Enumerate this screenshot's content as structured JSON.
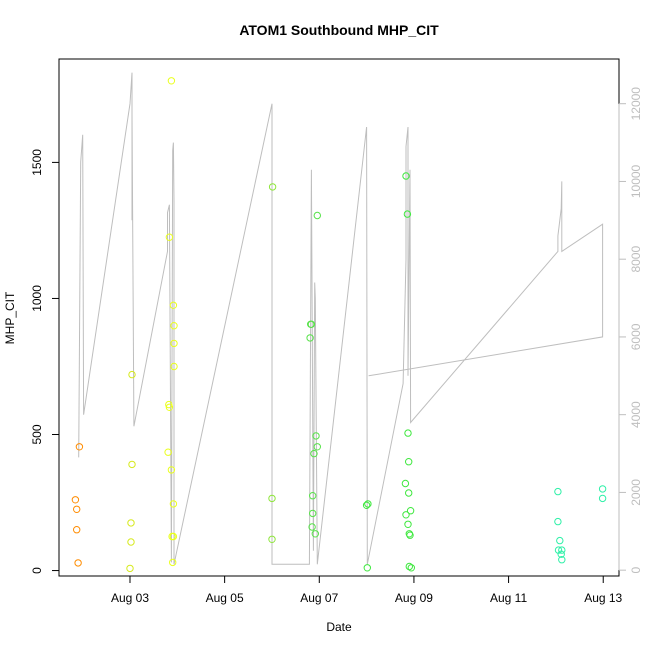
{
  "chart_data": {
    "type": "scatter",
    "title": "ATOM1 Southbound MHP_CIT",
    "xlabel": "Date",
    "ylabel": "MHP_CIT",
    "xlim": [
      "2024-08-01T12:00",
      "2024-08-13T08:00"
    ],
    "ylim": [
      -20,
      1880
    ],
    "y2lim": [
      -150,
      13150
    ],
    "x_ticks": [
      {
        "t": "2024-08-03T00:00",
        "label": "Aug 03"
      },
      {
        "t": "2024-08-05T00:00",
        "label": "Aug 05"
      },
      {
        "t": "2024-08-07T00:00",
        "label": "Aug 07"
      },
      {
        "t": "2024-08-09T00:00",
        "label": "Aug 09"
      },
      {
        "t": "2024-08-11T00:00",
        "label": "Aug 11"
      },
      {
        "t": "2024-08-13T00:00",
        "label": "Aug 13"
      }
    ],
    "y_ticks": [
      0,
      500,
      1000,
      1500
    ],
    "y2_ticks": [
      0,
      2000,
      4000,
      6000,
      8000,
      10000,
      12000
    ],
    "grid": false,
    "series": [
      {
        "color": "#ff8c00",
        "points": [
          [
            "2024-08-01T20:20",
            260
          ],
          [
            "2024-08-01T21:00",
            225
          ],
          [
            "2024-08-01T21:00",
            150
          ],
          [
            "2024-08-01T21:40",
            28
          ],
          [
            "2024-08-01T22:20",
            455
          ]
        ]
      },
      {
        "color": "#d7ea1e",
        "points": [
          [
            "2024-08-03T00:00",
            8
          ],
          [
            "2024-08-03T00:30",
            105
          ],
          [
            "2024-08-03T00:30",
            175
          ],
          [
            "2024-08-03T01:00",
            390
          ],
          [
            "2024-08-03T01:00",
            720
          ]
        ]
      },
      {
        "color": "#eaff1e",
        "points": [
          [
            "2024-08-03T19:20",
            435
          ],
          [
            "2024-08-03T19:40",
            610
          ],
          [
            "2024-08-03T20:00",
            600
          ],
          [
            "2024-08-03T20:00",
            1225
          ],
          [
            "2024-08-03T21:00",
            1800
          ],
          [
            "2024-08-03T21:00",
            370
          ],
          [
            "2024-08-03T21:20",
            125
          ],
          [
            "2024-08-03T21:40",
            30
          ],
          [
            "2024-08-03T22:00",
            125
          ],
          [
            "2024-08-03T22:00",
            245
          ],
          [
            "2024-08-03T22:00",
            975
          ],
          [
            "2024-08-03T22:20",
            900
          ],
          [
            "2024-08-03T22:20",
            835
          ],
          [
            "2024-08-03T22:20",
            750
          ]
        ]
      },
      {
        "color": "#8fe63c",
        "points": [
          [
            "2024-08-06T00:00",
            265
          ],
          [
            "2024-08-06T00:00",
            115
          ],
          [
            "2024-08-06T00:20",
            1410
          ]
        ]
      },
      {
        "color": "#58e24a",
        "points": [
          [
            "2024-08-06T19:20",
            855
          ],
          [
            "2024-08-06T19:40",
            905
          ],
          [
            "2024-08-06T20:00",
            905
          ],
          [
            "2024-08-06T20:20",
            160
          ],
          [
            "2024-08-06T20:40",
            275
          ],
          [
            "2024-08-06T20:40",
            210
          ],
          [
            "2024-08-06T21:20",
            430
          ],
          [
            "2024-08-06T22:00",
            135
          ],
          [
            "2024-08-06T22:20",
            495
          ],
          [
            "2024-08-06T23:00",
            455
          ],
          [
            "2024-08-06T23:00",
            1305
          ]
        ]
      },
      {
        "color": "#3ee83e",
        "points": [
          [
            "2024-08-08T00:00",
            240
          ],
          [
            "2024-08-08T00:20",
            10
          ],
          [
            "2024-08-08T00:40",
            245
          ],
          [
            "2024-08-08T19:40",
            320
          ],
          [
            "2024-08-08T20:00",
            205
          ],
          [
            "2024-08-08T20:00",
            1450
          ],
          [
            "2024-08-08T20:40",
            1310
          ],
          [
            "2024-08-08T21:00",
            505
          ],
          [
            "2024-08-08T21:00",
            170
          ],
          [
            "2024-08-08T21:20",
            285
          ],
          [
            "2024-08-08T21:20",
            400
          ],
          [
            "2024-08-08T21:40",
            135
          ],
          [
            "2024-08-08T21:40",
            15
          ],
          [
            "2024-08-08T22:00",
            130
          ],
          [
            "2024-08-08T22:20",
            220
          ],
          [
            "2024-08-08T22:40",
            10
          ]
        ]
      },
      {
        "color": "#2ff0a8",
        "points": [
          [
            "2024-08-12T01:00",
            290
          ],
          [
            "2024-08-12T01:00",
            180
          ],
          [
            "2024-08-12T01:20",
            75
          ],
          [
            "2024-08-12T02:00",
            110
          ],
          [
            "2024-08-12T02:40",
            60
          ],
          [
            "2024-08-12T03:00",
            75
          ],
          [
            "2024-08-12T03:00",
            40
          ],
          [
            "2024-08-12T23:40",
            300
          ],
          [
            "2024-08-12T23:40",
            265
          ]
        ]
      }
    ],
    "line_series": {
      "color": "#bebebe",
      "axis": "right",
      "points": [
        [
          "2024-08-01T22:00",
          2900
        ],
        [
          "2024-08-01T23:00",
          10500
        ],
        [
          "2024-08-02T00:00",
          11200
        ],
        [
          "2024-08-02T00:30",
          4000
        ],
        [
          "2024-08-03T00:00",
          12000
        ],
        [
          "2024-08-03T01:00",
          12800
        ],
        [
          "2024-08-03T01:00",
          9000
        ],
        [
          "2024-08-03T01:00",
          11800
        ],
        [
          "2024-08-03T02:00",
          3700
        ],
        [
          "2024-08-03T19:00",
          8200
        ],
        [
          "2024-08-03T19:00",
          9200
        ],
        [
          "2024-08-03T20:00",
          9400
        ],
        [
          "2024-08-03T21:00",
          200
        ],
        [
          "2024-08-03T21:40",
          10800
        ],
        [
          "2024-08-03T22:00",
          11000
        ],
        [
          "2024-08-03T22:20",
          9500
        ],
        [
          "2024-08-03T22:20",
          150
        ],
        [
          "2024-08-06T00:00",
          12000
        ],
        [
          "2024-08-06T00:00",
          5500
        ],
        [
          "2024-08-06T00:00",
          150
        ],
        [
          "2024-08-06T19:00",
          150
        ],
        [
          "2024-08-06T20:00",
          10300
        ],
        [
          "2024-08-06T21:00",
          500
        ],
        [
          "2024-08-06T21:40",
          7400
        ],
        [
          "2024-08-06T22:00",
          7000
        ],
        [
          "2024-08-06T23:00",
          150
        ],
        [
          "2024-08-08T00:00",
          11400
        ],
        [
          "2024-08-08T00:20",
          150
        ],
        [
          "2024-08-08T18:30",
          4800
        ],
        [
          "2024-08-08T20:00",
          8000
        ],
        [
          "2024-08-08T20:00",
          10900
        ],
        [
          "2024-08-08T21:00",
          11400
        ],
        [
          "2024-08-08T21:00",
          5000
        ],
        [
          "2024-08-08T22:00",
          10300
        ],
        [
          "2024-08-08T22:20",
          3800
        ],
        [
          "2024-08-12T01:00",
          8200
        ],
        [
          "2024-08-12T01:00",
          8600
        ],
        [
          "2024-08-12T02:00",
          9000
        ],
        [
          "2024-08-12T02:40",
          9300
        ],
        [
          "2024-08-12T03:00",
          10000
        ],
        [
          "2024-08-12T03:00",
          8200
        ],
        [
          "2024-08-12T23:40",
          8900
        ],
        [
          "2024-08-12T23:40",
          6000
        ],
        [
          "2024-08-08T01:00",
          5000
        ]
      ]
    }
  }
}
